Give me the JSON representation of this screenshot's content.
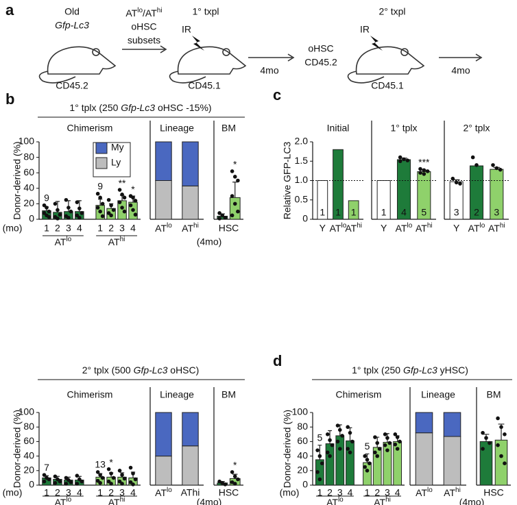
{
  "panel_labels": [
    "a",
    "b",
    "c",
    "d"
  ],
  "diagram": {
    "donor_age": "Old",
    "donor_strain": "Gfp-Lc3",
    "donor_marker": "CD45.2",
    "sort": [
      [
        "AT",
        "lo",
        "/AT",
        "hi"
      ],
      "oHSC",
      "subsets"
    ],
    "tx1": "1° txpl",
    "ir1": "IR",
    "recipient1": "CD45.1",
    "wait1": "4mo",
    "transfer": [
      "oHSC",
      "CD45.2"
    ],
    "tx2": "2° txpl",
    "ir2": "IR",
    "recipient2": "CD45.1",
    "wait2": "4mo"
  },
  "headers": [
    [
      "1° tplx (250 ",
      "Gfp-Lc3",
      " oHSC -15%)"
    ],
    [
      "2° tplx (500 ",
      "Gfp-Lc3",
      " oHSC)"
    ],
    [
      "1° tplx (250 ",
      "Gfp-Lc3",
      " yHSC)"
    ]
  ],
  "chart_data": [
    {
      "type": "bar",
      "title": "Chimerism",
      "ylabel": "Donor-derived (%)",
      "xlabel": "(mo)",
      "ylim": [
        0,
        100
      ],
      "yticks": [
        0,
        20,
        40,
        60,
        80,
        100
      ],
      "groups": [
        {
          "label": {
            "base": "AT",
            "sup": "lo"
          },
          "color": "#1e7b3a",
          "categories": [
            "1",
            "2",
            "3",
            "4"
          ],
          "values": [
            11,
            9,
            10,
            10
          ],
          "errors": [
            5,
            14,
            14,
            14
          ],
          "points": [
            [
              18,
              15,
              10,
              8,
              5,
              3
            ],
            [
              20,
              12,
              6,
              3,
              1
            ],
            [
              25,
              15,
              10,
              4,
              2
            ],
            [
              22,
              14,
              8,
              5,
              2
            ]
          ],
          "n": [
            "9",
            null,
            null,
            null
          ]
        },
        {
          "label": {
            "base": "AT",
            "sup": "hi"
          },
          "color": "#8fd16b",
          "categories": [
            "1",
            "2",
            "3",
            "4"
          ],
          "values": [
            18,
            14,
            24,
            22
          ],
          "errors": [
            8,
            6,
            7,
            8
          ],
          "points": [
            [
              33,
              28,
              20,
              15,
              10,
              4
            ],
            [
              25,
              18,
              12,
              8,
              5
            ],
            [
              38,
              32,
              28,
              22,
              15,
              10
            ],
            [
              30,
              28,
              24,
              18,
              12,
              6
            ]
          ],
          "n": [
            "9",
            null,
            null,
            null
          ],
          "sig": [
            null,
            null,
            "**",
            "*"
          ]
        }
      ]
    },
    {
      "type": "stacked",
      "title": "Lineage",
      "ylim": [
        0,
        100
      ],
      "legend": true,
      "xlabel_shared": "(4mo)",
      "categories": [
        {
          "base": "AT",
          "sup": "lo"
        },
        {
          "base": "AT",
          "sup": "hi"
        }
      ],
      "series": [
        {
          "name": "Ly",
          "color": "#bdbdbd",
          "values": [
            50,
            43
          ],
          "errors": [
            11,
            10
          ]
        },
        {
          "name": "My",
          "color": "#4a68c0",
          "values": [
            50,
            57
          ]
        }
      ]
    },
    {
      "type": "bar",
      "title": "BM",
      "category": "HSC",
      "ylim": [
        0,
        100
      ],
      "groups": [
        {
          "color": "#1e7b3a",
          "values": [
            4
          ],
          "errors": [
            3
          ],
          "points": [
            [
              8,
              5,
              2,
              1
            ]
          ]
        },
        {
          "color": "#8fd16b",
          "values": [
            28
          ],
          "errors": [
            20
          ],
          "points": [
            [
              62,
              55,
              50,
              30,
              20,
              10,
              5
            ]
          ],
          "sig": [
            "*"
          ]
        }
      ]
    },
    {
      "type": "bar",
      "title": "Chimerism",
      "ylabel": "Donor-derived (%)",
      "xlabel": "(mo)",
      "ylim": [
        0,
        100
      ],
      "yticks": [
        0,
        20,
        40,
        60,
        80,
        100
      ],
      "groups": [
        {
          "label": {
            "base": "AT",
            "sup": "lo"
          },
          "color": "#1e7b3a",
          "categories": [
            "1",
            "2",
            "3",
            "4"
          ],
          "values": [
            10,
            8,
            7,
            7
          ],
          "errors": [
            3,
            4,
            4,
            5
          ],
          "points": [
            [
              14,
              10,
              8,
              5
            ],
            [
              12,
              8,
              5,
              3
            ],
            [
              10,
              7,
              4,
              2
            ],
            [
              13,
              8,
              5,
              2
            ]
          ],
          "n": [
            "7",
            null,
            null,
            null
          ]
        },
        {
          "label": {
            "base": "AT",
            "sup": "hi"
          },
          "color": "#8fd16b",
          "categories": [
            "1",
            "2",
            "3",
            "4"
          ],
          "values": [
            11,
            11,
            11,
            10
          ],
          "errors": [
            5,
            6,
            6,
            8
          ],
          "points": [
            [
              18,
              14,
              10,
              6,
              3
            ],
            [
              22,
              16,
              10,
              5,
              2
            ],
            [
              20,
              14,
              9,
              5,
              2
            ],
            [
              24,
              16,
              8,
              4,
              1
            ]
          ],
          "n": [
            "13",
            null,
            null,
            null
          ],
          "sig": [
            null,
            "*",
            null,
            null
          ]
        }
      ]
    },
    {
      "type": "stacked",
      "title": "Lineage",
      "ylim": [
        0,
        100
      ],
      "xlabel_shared": "(4mo)",
      "categories": [
        {
          "base": "AT",
          "sup": "lo"
        },
        "AThi"
      ],
      "series": [
        {
          "name": "Ly",
          "color": "#bdbdbd",
          "values": [
            40,
            54
          ],
          "errors": [
            5,
            6
          ]
        },
        {
          "name": "My",
          "color": "#4a68c0",
          "values": [
            60,
            46
          ]
        }
      ]
    },
    {
      "type": "bar",
      "title": "BM",
      "category": "HSC",
      "ylim": [
        0,
        100
      ],
      "groups": [
        {
          "color": "#1e7b3a",
          "values": [
            3
          ],
          "errors": [
            2
          ],
          "points": [
            [
              5,
              3,
              1
            ]
          ]
        },
        {
          "color": "#8fd16b",
          "values": [
            9
          ],
          "errors": [
            6
          ],
          "points": [
            [
              18,
              12,
              8,
              4,
              2
            ]
          ],
          "sig": [
            "*"
          ]
        }
      ]
    },
    {
      "type": "bar",
      "title": "Initial",
      "ylabel": "Relative GFP-LC3",
      "ylim": [
        0,
        2
      ],
      "yticks": [
        0,
        0.5,
        {
          "value": 1,
          "label": "1.0"
        },
        1.5,
        {
          "value": 2,
          "label": "2.0"
        }
      ],
      "refline": 1,
      "groups": [
        {
          "color": "#ffffff",
          "categories": [
            "Y"
          ],
          "values": [
            1
          ],
          "n": [
            "1"
          ]
        },
        {
          "color": "#1e7b3a",
          "categories": [
            {
              "base": "AT",
              "sup": "lo"
            }
          ],
          "values": [
            1.8
          ],
          "n": [
            "1"
          ]
        },
        {
          "color": "#8fd16b",
          "categories": [
            {
              "base": "AT",
              "sup": "hi"
            }
          ],
          "values": [
            0.48
          ],
          "n": [
            "1"
          ]
        }
      ]
    },
    {
      "type": "bar",
      "title": "1° tplx",
      "ylim": [
        0,
        2
      ],
      "refline": 1,
      "groups": [
        {
          "color": "#ffffff",
          "categories": [
            "Y"
          ],
          "values": [
            1
          ],
          "n": [
            "1"
          ]
        },
        {
          "color": "#1e7b3a",
          "categories": [
            {
              "base": "AT",
              "sup": "lo"
            }
          ],
          "values": [
            1.54
          ],
          "errors": [
            0.04
          ],
          "points": [
            [
              1.6,
              1.55,
              1.52,
              1.5
            ]
          ],
          "n": [
            "4"
          ]
        },
        {
          "color": "#8fd16b",
          "categories": [
            {
              "base": "AT",
              "sup": "hi"
            }
          ],
          "values": [
            1.23
          ],
          "errors": [
            0.04
          ],
          "points": [
            [
              1.3,
              1.27,
              1.24,
              1.2,
              1.17
            ]
          ],
          "n": [
            "5"
          ],
          "sig": [
            "***"
          ]
        }
      ]
    },
    {
      "type": "bar",
      "title": "2° tplx",
      "ylim": [
        0,
        2
      ],
      "refline": 1,
      "groups": [
        {
          "color": "#ffffff",
          "categories": [
            "Y"
          ],
          "values": [
            0.97
          ],
          "errors": [
            0.05
          ],
          "points": [
            [
              1.05,
              0.95,
              0.92
            ]
          ],
          "n": [
            "3"
          ]
        },
        {
          "color": "#1e7b3a",
          "categories": [
            {
              "base": "AT",
              "sup": "lo"
            }
          ],
          "values": [
            1.38
          ],
          "points": [
            [
              1.6,
              1.4
            ]
          ],
          "n": [
            "2"
          ]
        },
        {
          "color": "#8fd16b",
          "categories": [
            {
              "base": "AT",
              "sup": "hi"
            }
          ],
          "values": [
            1.29
          ],
          "errors": [
            0.05
          ],
          "points": [
            [
              1.4,
              1.32,
              1.28
            ]
          ],
          "n": [
            "3"
          ]
        }
      ]
    },
    {
      "type": "bar",
      "title": "Chimerism",
      "ylabel": "Donor-derived (%)",
      "xlabel": "(mo)",
      "ylim": [
        0,
        100
      ],
      "yticks": [
        0,
        20,
        40,
        60,
        80,
        100
      ],
      "groups": [
        {
          "label": {
            "base": "AT",
            "sup": "lo"
          },
          "color": "#1e7b3a",
          "categories": [
            "1",
            "2",
            "3",
            "4"
          ],
          "values": [
            35,
            57,
            68,
            61
          ],
          "errors": [
            20,
            18,
            15,
            18
          ],
          "points": [
            [
              48,
              40,
              30,
              18,
              8
            ],
            [
              70,
              62,
              55,
              45,
              40
            ],
            [
              82,
              76,
              68,
              60,
              50
            ],
            [
              80,
              72,
              60,
              50,
              45
            ]
          ],
          "n": [
            "5",
            null,
            null,
            null
          ]
        },
        {
          "label": {
            "base": "AT",
            "sup": "hi"
          },
          "color": "#8fd16b",
          "categories": [
            "1",
            "2",
            "3",
            "4"
          ],
          "values": [
            31,
            52,
            59,
            60
          ],
          "errors": [
            12,
            14,
            12,
            8
          ],
          "points": [
            [
              40,
              35,
              30,
              25,
              20
            ],
            [
              66,
              58,
              50,
              45,
              40
            ],
            [
              70,
              65,
              58,
              55,
              48
            ],
            [
              70,
              66,
              60,
              56,
              50
            ]
          ],
          "n": [
            "5",
            null,
            null,
            null
          ]
        }
      ]
    },
    {
      "type": "stacked",
      "title": "Lineage",
      "ylim": [
        0,
        100
      ],
      "xlabel_shared": "(4mo)",
      "categories": [
        {
          "base": "AT",
          "sup": "lo"
        },
        {
          "base": "AT",
          "sup": "hi"
        }
      ],
      "series": [
        {
          "name": "Ly",
          "color": "#bdbdbd",
          "values": [
            72,
            67
          ],
          "errors": [
            12,
            4
          ]
        },
        {
          "name": "My",
          "color": "#4a68c0",
          "values": [
            28,
            33
          ]
        }
      ]
    },
    {
      "type": "bar",
      "title": "BM",
      "category": "HSC",
      "ylim": [
        0,
        100
      ],
      "groups": [
        {
          "color": "#1e7b3a",
          "values": [
            60
          ],
          "errors": [
            10
          ],
          "points": [
            [
              72,
              65,
              58,
              50
            ]
          ]
        },
        {
          "color": "#8fd16b",
          "values": [
            62
          ],
          "errors": [
            22
          ],
          "points": [
            [
              92,
              80,
              70,
              55,
              40,
              30
            ]
          ]
        }
      ]
    }
  ]
}
